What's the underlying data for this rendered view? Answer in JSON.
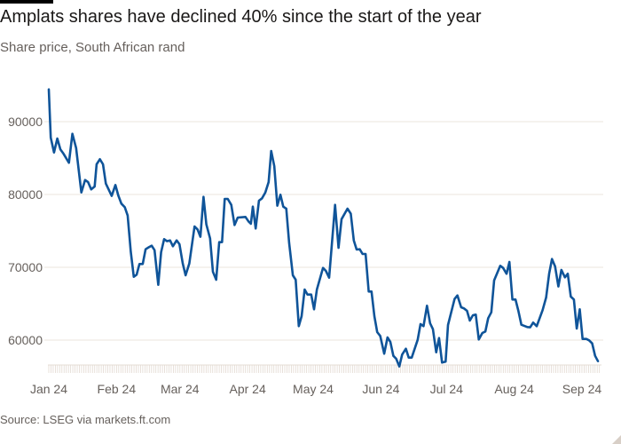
{
  "chart_data": {
    "type": "line",
    "title": "Amplats shares have declined 40% since the start of the year",
    "subtitle": "Share price, South African rand",
    "source": "Source: LSEG via markets.ft.com",
    "xlabel": "",
    "ylabel": "",
    "x_units": "days since 1 Jan 2024",
    "ylim": [
      55500,
      96000
    ],
    "xlim": [
      0,
      252
    ],
    "grid": true,
    "yticks": [
      {
        "value": 60000,
        "label": "60000"
      },
      {
        "value": 70000,
        "label": "70000"
      },
      {
        "value": 80000,
        "label": "80000"
      },
      {
        "value": 90000,
        "label": "90000"
      }
    ],
    "xticks": [
      {
        "value": 0,
        "label": "Jan 24"
      },
      {
        "value": 31,
        "label": "Feb 24"
      },
      {
        "value": 60,
        "label": "Mar 24"
      },
      {
        "value": 91,
        "label": "Apr 24"
      },
      {
        "value": 121,
        "label": "May 24"
      },
      {
        "value": 152,
        "label": "Jun 24"
      },
      {
        "value": 182,
        "label": "Jul 24"
      },
      {
        "value": 213,
        "label": "Aug 24"
      },
      {
        "value": 244,
        "label": "Sep 24"
      }
    ],
    "series": [
      {
        "name": "Amplats share price",
        "color": "#0f5499",
        "points": [
          [
            0,
            94430
          ],
          [
            0.9,
            87800
          ],
          [
            2.4,
            85770
          ],
          [
            3.9,
            87680
          ],
          [
            5.3,
            86180
          ],
          [
            6.8,
            85570
          ],
          [
            9.2,
            84350
          ],
          [
            10.8,
            88330
          ],
          [
            12.5,
            86380
          ],
          [
            14.9,
            80280
          ],
          [
            16.6,
            81990
          ],
          [
            18.0,
            81700
          ],
          [
            19.4,
            80700
          ],
          [
            21.0,
            81100
          ],
          [
            21.9,
            84150
          ],
          [
            23.4,
            84840
          ],
          [
            24.8,
            84150
          ],
          [
            26.1,
            81500
          ],
          [
            28.8,
            79800
          ],
          [
            30.5,
            81300
          ],
          [
            31.8,
            79880
          ],
          [
            33.2,
            78740
          ],
          [
            34.8,
            78250
          ],
          [
            36.1,
            77110
          ],
          [
            37.5,
            72160
          ],
          [
            38.9,
            68700
          ],
          [
            40.2,
            68990
          ],
          [
            41.5,
            70450
          ],
          [
            43.0,
            70450
          ],
          [
            44.3,
            72480
          ],
          [
            45.8,
            72760
          ],
          [
            47.1,
            72960
          ],
          [
            48.4,
            72350
          ],
          [
            50.1,
            67600
          ],
          [
            51.4,
            72070
          ],
          [
            52.8,
            73870
          ],
          [
            54.1,
            73580
          ],
          [
            55.5,
            73700
          ],
          [
            56.8,
            72890
          ],
          [
            58.5,
            73700
          ],
          [
            59.8,
            73170
          ],
          [
            61.3,
            70530
          ],
          [
            62.6,
            68900
          ],
          [
            64.3,
            70530
          ],
          [
            66.7,
            75610
          ],
          [
            68.1,
            75200
          ],
          [
            69.4,
            74190
          ],
          [
            70.8,
            79670
          ],
          [
            72.1,
            75890
          ],
          [
            73.8,
            73980
          ],
          [
            75.1,
            69390
          ],
          [
            76.6,
            68290
          ],
          [
            78.0,
            73450
          ],
          [
            79.3,
            73450
          ],
          [
            80.5,
            79390
          ],
          [
            81.9,
            79390
          ],
          [
            83.5,
            78570
          ],
          [
            85.0,
            75810
          ],
          [
            86.5,
            76830
          ],
          [
            90.0,
            76910
          ],
          [
            91.4,
            76300
          ],
          [
            92.5,
            75970
          ],
          [
            93.4,
            78330
          ],
          [
            94.7,
            75330
          ],
          [
            96.2,
            79150
          ],
          [
            97.6,
            79480
          ],
          [
            99.1,
            80280
          ],
          [
            100.6,
            81710
          ],
          [
            101.8,
            85980
          ],
          [
            103.2,
            83860
          ],
          [
            104.6,
            78450
          ],
          [
            106.0,
            79960
          ],
          [
            107.3,
            78330
          ],
          [
            108.7,
            78050
          ],
          [
            110.0,
            73380
          ],
          [
            111.7,
            68900
          ],
          [
            113.0,
            68290
          ],
          [
            114.4,
            61910
          ],
          [
            115.7,
            63290
          ],
          [
            117.1,
            66950
          ],
          [
            118.4,
            66260
          ],
          [
            120.1,
            66260
          ],
          [
            121.4,
            64230
          ],
          [
            122.7,
            66950
          ],
          [
            125.5,
            69910
          ],
          [
            126.8,
            69510
          ],
          [
            128.3,
            68570
          ],
          [
            131.0,
            78570
          ],
          [
            132.6,
            72670
          ],
          [
            134.0,
            76610
          ],
          [
            136.7,
            78050
          ],
          [
            138.2,
            77360
          ],
          [
            139.6,
            73700
          ],
          [
            140.9,
            72440
          ],
          [
            142.3,
            72480
          ],
          [
            143.6,
            71830
          ],
          [
            145.0,
            71830
          ],
          [
            146.4,
            66670
          ],
          [
            147.7,
            66670
          ],
          [
            149.0,
            63290
          ],
          [
            150.3,
            61100
          ],
          [
            151.7,
            60570
          ],
          [
            153.5,
            58130
          ],
          [
            155.0,
            60370
          ],
          [
            156.3,
            59760
          ],
          [
            157.7,
            57840
          ],
          [
            159.0,
            57440
          ],
          [
            160.4,
            56380
          ],
          [
            161.7,
            58010
          ],
          [
            163.4,
            58820
          ],
          [
            164.7,
            57600
          ],
          [
            166.1,
            57600
          ],
          [
            168.8,
            60040
          ],
          [
            170.1,
            62200
          ],
          [
            171.5,
            61910
          ],
          [
            173.1,
            64720
          ],
          [
            174.5,
            62320
          ],
          [
            175.8,
            61500
          ],
          [
            177.3,
            58330
          ],
          [
            178.6,
            60280
          ],
          [
            180.0,
            56920
          ],
          [
            181.6,
            57040
          ],
          [
            182.7,
            62070
          ],
          [
            185.7,
            65650
          ],
          [
            187.0,
            66140
          ],
          [
            188.7,
            64510
          ],
          [
            190.0,
            64350
          ],
          [
            191.4,
            64020
          ],
          [
            192.7,
            62680
          ],
          [
            194.1,
            63410
          ],
          [
            195.4,
            63500
          ],
          [
            196.8,
            60080
          ],
          [
            198.4,
            60970
          ],
          [
            199.8,
            61180
          ],
          [
            201.1,
            63010
          ],
          [
            202.5,
            63820
          ],
          [
            203.8,
            68210
          ],
          [
            205.2,
            69190
          ],
          [
            206.6,
            70210
          ],
          [
            207.9,
            69910
          ],
          [
            209.5,
            69110
          ],
          [
            210.8,
            70730
          ],
          [
            212.2,
            65570
          ],
          [
            213.6,
            65570
          ],
          [
            214.9,
            64020
          ],
          [
            216.3,
            62110
          ],
          [
            219.0,
            61790
          ],
          [
            220.3,
            61750
          ],
          [
            221.7,
            62400
          ],
          [
            223.3,
            61910
          ],
          [
            226.0,
            64110
          ],
          [
            227.6,
            65850
          ],
          [
            229.0,
            69110
          ],
          [
            230.3,
            71130
          ],
          [
            231.7,
            70120
          ],
          [
            233.2,
            67360
          ],
          [
            234.6,
            69630
          ],
          [
            236.2,
            68620
          ],
          [
            237.5,
            69110
          ],
          [
            238.9,
            65970
          ],
          [
            240.3,
            65570
          ],
          [
            241.6,
            61590
          ],
          [
            243.0,
            64230
          ],
          [
            244.3,
            60160
          ],
          [
            246.0,
            60160
          ],
          [
            247.3,
            59960
          ],
          [
            248.7,
            59550
          ],
          [
            250.0,
            57840
          ],
          [
            251.3,
            57110
          ]
        ]
      }
    ]
  }
}
